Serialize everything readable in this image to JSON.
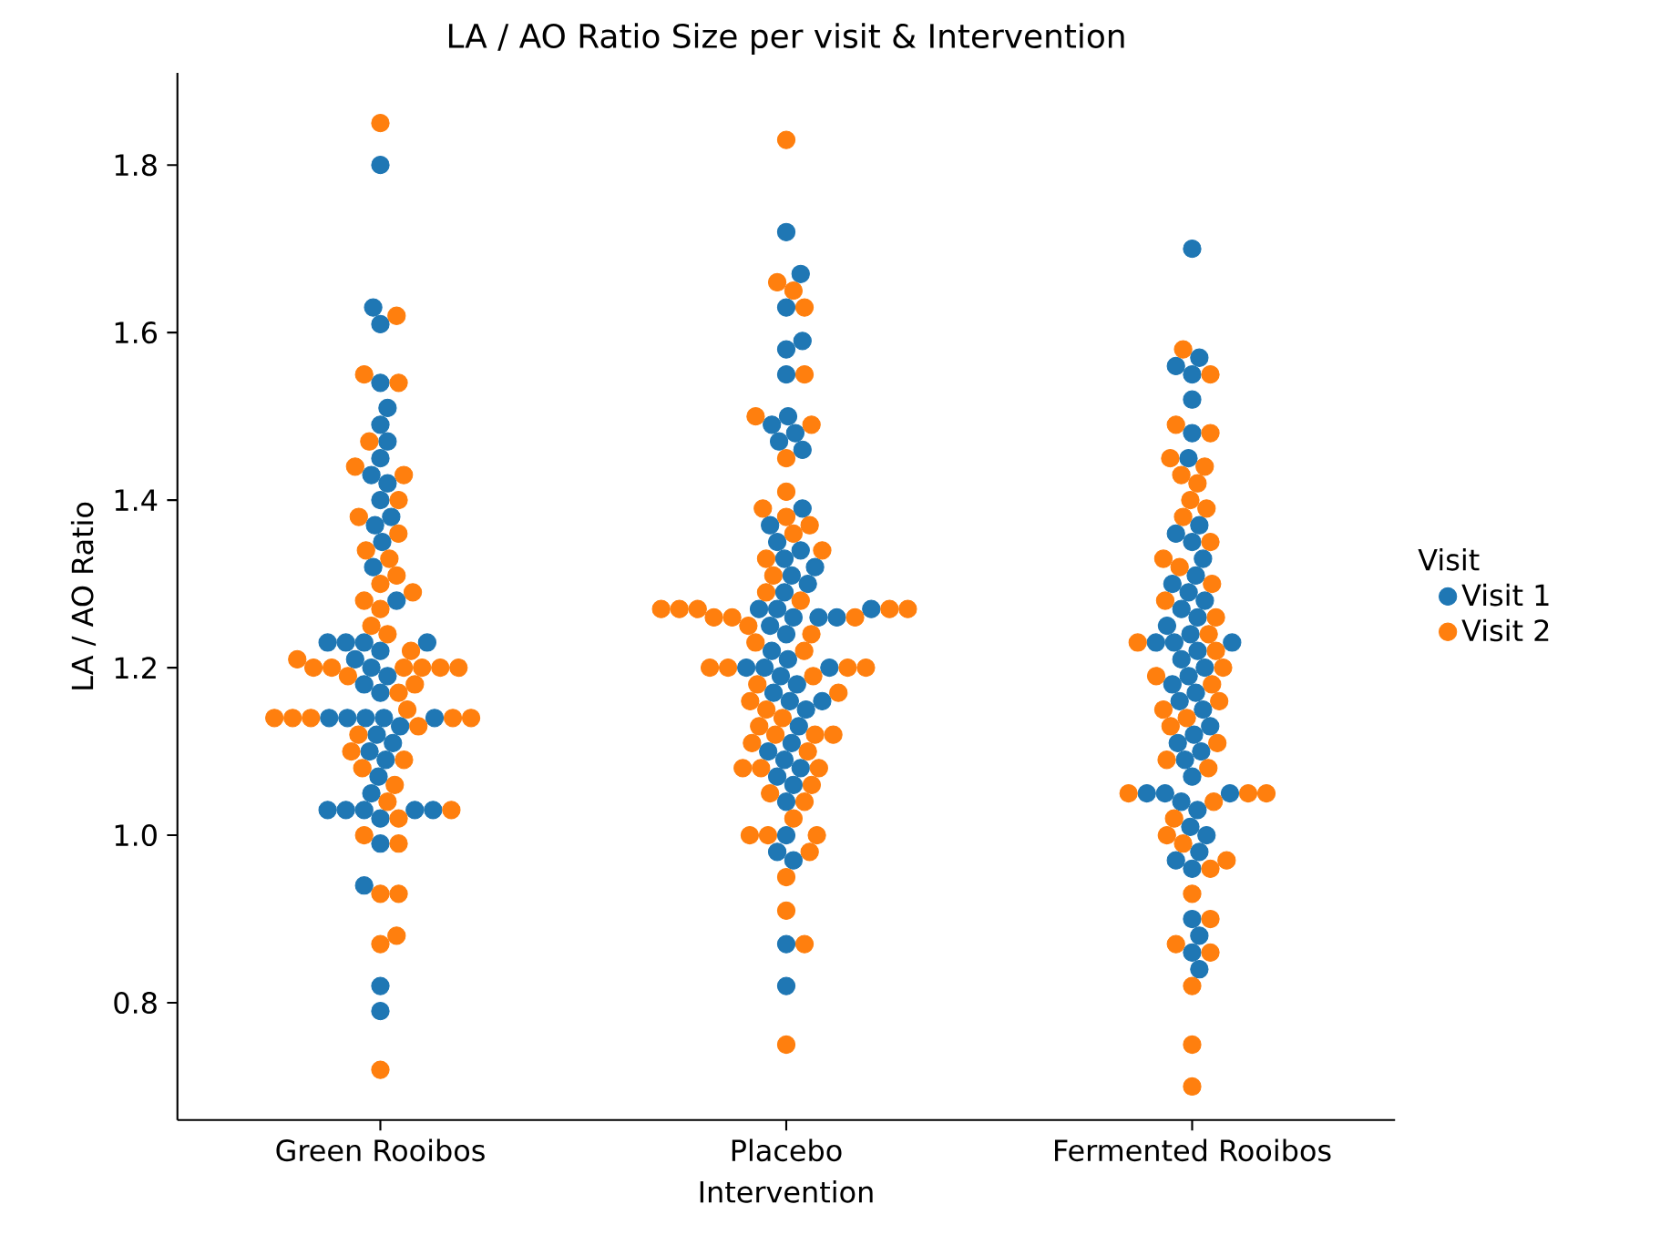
{
  "chart_data": {
    "type": "scatter",
    "title": "LA / AO Ratio Size per visit & Intervention",
    "xlabel": "Intervention",
    "ylabel": "LA / AO Ratio",
    "legend_title": "Visit",
    "legend": "right",
    "marker": "circle",
    "categories": [
      "Green Rooibos",
      "Placebo",
      "Fermented Rooibos"
    ],
    "ylim": [
      0.66,
      1.91
    ],
    "yticks": [
      0.8,
      {
        "value": 1.0,
        "label": "1.0"
      },
      1.2,
      1.4,
      1.6,
      1.8
    ],
    "series": [
      {
        "name": "Visit 1",
        "color": "#1f77b4",
        "x": [
          "Green Rooibos",
          "Green Rooibos",
          "Green Rooibos",
          "Green Rooibos",
          "Green Rooibos",
          "Green Rooibos",
          "Green Rooibos",
          "Green Rooibos",
          "Green Rooibos",
          "Green Rooibos",
          "Green Rooibos",
          "Green Rooibos",
          "Green Rooibos",
          "Green Rooibos",
          "Green Rooibos",
          "Green Rooibos",
          "Green Rooibos",
          "Green Rooibos",
          "Green Rooibos",
          "Green Rooibos",
          "Green Rooibos",
          "Green Rooibos",
          "Green Rooibos",
          "Green Rooibos",
          "Green Rooibos",
          "Green Rooibos",
          "Green Rooibos",
          "Green Rooibos",
          "Green Rooibos",
          "Green Rooibos",
          "Green Rooibos",
          "Green Rooibos",
          "Green Rooibos",
          "Green Rooibos",
          "Green Rooibos",
          "Green Rooibos",
          "Green Rooibos",
          "Green Rooibos",
          "Green Rooibos",
          "Green Rooibos",
          "Green Rooibos",
          "Green Rooibos",
          "Green Rooibos",
          "Green Rooibos",
          "Green Rooibos",
          "Green Rooibos",
          "Green Rooibos",
          "Green Rooibos",
          "Placebo",
          "Placebo",
          "Placebo",
          "Placebo",
          "Placebo",
          "Placebo",
          "Placebo",
          "Placebo",
          "Placebo",
          "Placebo",
          "Placebo",
          "Placebo",
          "Placebo",
          "Placebo",
          "Placebo",
          "Placebo",
          "Placebo",
          "Placebo",
          "Placebo",
          "Placebo",
          "Placebo",
          "Placebo",
          "Placebo",
          "Placebo",
          "Placebo",
          "Placebo",
          "Placebo",
          "Placebo",
          "Placebo",
          "Placebo",
          "Placebo",
          "Placebo",
          "Placebo",
          "Placebo",
          "Placebo",
          "Placebo",
          "Placebo",
          "Placebo",
          "Placebo",
          "Placebo",
          "Placebo",
          "Placebo",
          "Placebo",
          "Placebo",
          "Placebo",
          "Placebo",
          "Placebo",
          "Placebo",
          "Placebo",
          "Placebo",
          "Placebo",
          "Placebo",
          "Fermented Rooibos",
          "Fermented Rooibos",
          "Fermented Rooibos",
          "Fermented Rooibos",
          "Fermented Rooibos",
          "Fermented Rooibos",
          "Fermented Rooibos",
          "Fermented Rooibos",
          "Fermented Rooibos",
          "Fermented Rooibos",
          "Fermented Rooibos",
          "Fermented Rooibos",
          "Fermented Rooibos",
          "Fermented Rooibos",
          "Fermented Rooibos",
          "Fermented Rooibos",
          "Fermented Rooibos",
          "Fermented Rooibos",
          "Fermented Rooibos",
          "Fermented Rooibos",
          "Fermented Rooibos",
          "Fermented Rooibos",
          "Fermented Rooibos",
          "Fermented Rooibos",
          "Fermented Rooibos",
          "Fermented Rooibos",
          "Fermented Rooibos",
          "Fermented Rooibos",
          "Fermented Rooibos",
          "Fermented Rooibos",
          "Fermented Rooibos",
          "Fermented Rooibos",
          "Fermented Rooibos",
          "Fermented Rooibos",
          "Fermented Rooibos",
          "Fermented Rooibos",
          "Fermented Rooibos",
          "Fermented Rooibos",
          "Fermented Rooibos",
          "Fermented Rooibos",
          "Fermented Rooibos",
          "Fermented Rooibos",
          "Fermented Rooibos",
          "Fermented Rooibos",
          "Fermented Rooibos",
          "Fermented Rooibos",
          "Fermented Rooibos",
          "Fermented Rooibos",
          "Fermented Rooibos",
          "Fermented Rooibos"
        ],
        "values": [
          1.8,
          1.63,
          1.61,
          1.54,
          1.51,
          1.49,
          1.47,
          1.45,
          1.43,
          1.42,
          1.4,
          1.38,
          1.37,
          1.35,
          1.32,
          1.28,
          1.23,
          1.23,
          1.23,
          1.23,
          1.22,
          1.21,
          1.2,
          1.19,
          1.18,
          1.17,
          1.14,
          1.14,
          1.14,
          1.14,
          1.14,
          1.13,
          1.12,
          1.11,
          1.1,
          1.09,
          1.07,
          1.05,
          1.03,
          1.03,
          1.03,
          1.03,
          1.03,
          1.02,
          0.99,
          0.94,
          0.82,
          0.79,
          1.72,
          1.67,
          1.63,
          1.59,
          1.58,
          1.55,
          1.5,
          1.49,
          1.48,
          1.47,
          1.46,
          1.39,
          1.37,
          1.35,
          1.34,
          1.33,
          1.32,
          1.31,
          1.3,
          1.29,
          1.27,
          1.27,
          1.27,
          1.26,
          1.26,
          1.26,
          1.25,
          1.24,
          1.22,
          1.21,
          1.2,
          1.2,
          1.2,
          1.19,
          1.18,
          1.17,
          1.16,
          1.16,
          1.15,
          1.13,
          1.11,
          1.1,
          1.09,
          1.08,
          1.07,
          1.06,
          1.04,
          1.0,
          0.98,
          0.97,
          0.87,
          0.82,
          1.7,
          1.57,
          1.56,
          1.55,
          1.52,
          1.48,
          1.45,
          1.37,
          1.36,
          1.35,
          1.33,
          1.31,
          1.3,
          1.29,
          1.28,
          1.27,
          1.26,
          1.25,
          1.24,
          1.23,
          1.23,
          1.23,
          1.22,
          1.21,
          1.2,
          1.19,
          1.18,
          1.17,
          1.16,
          1.15,
          1.13,
          1.12,
          1.11,
          1.1,
          1.09,
          1.07,
          1.05,
          1.05,
          1.05,
          1.04,
          1.03,
          1.01,
          1.0,
          0.98,
          0.97,
          0.96,
          0.9,
          0.88,
          0.86,
          0.84
        ]
      },
      {
        "name": "Visit 2",
        "color": "#ff7f0e",
        "x": [
          "Green Rooibos",
          "Green Rooibos",
          "Green Rooibos",
          "Green Rooibos",
          "Green Rooibos",
          "Green Rooibos",
          "Green Rooibos",
          "Green Rooibos",
          "Green Rooibos",
          "Green Rooibos",
          "Green Rooibos",
          "Green Rooibos",
          "Green Rooibos",
          "Green Rooibos",
          "Green Rooibos",
          "Green Rooibos",
          "Green Rooibos",
          "Green Rooibos",
          "Green Rooibos",
          "Green Rooibos",
          "Green Rooibos",
          "Green Rooibos",
          "Green Rooibos",
          "Green Rooibos",
          "Green Rooibos",
          "Green Rooibos",
          "Green Rooibos",
          "Green Rooibos",
          "Green Rooibos",
          "Green Rooibos",
          "Green Rooibos",
          "Green Rooibos",
          "Green Rooibos",
          "Green Rooibos",
          "Green Rooibos",
          "Green Rooibos",
          "Green Rooibos",
          "Green Rooibos",
          "Green Rooibos",
          "Green Rooibos",
          "Green Rooibos",
          "Green Rooibos",
          "Green Rooibos",
          "Green Rooibos",
          "Green Rooibos",
          "Green Rooibos",
          "Green Rooibos",
          "Green Rooibos",
          "Green Rooibos",
          "Green Rooibos",
          "Green Rooibos",
          "Green Rooibos",
          "Placebo",
          "Placebo",
          "Placebo",
          "Placebo",
          "Placebo",
          "Placebo",
          "Placebo",
          "Placebo",
          "Placebo",
          "Placebo",
          "Placebo",
          "Placebo",
          "Placebo",
          "Placebo",
          "Placebo",
          "Placebo",
          "Placebo",
          "Placebo",
          "Placebo",
          "Placebo",
          "Placebo",
          "Placebo",
          "Placebo",
          "Placebo",
          "Placebo",
          "Placebo",
          "Placebo",
          "Placebo",
          "Placebo",
          "Placebo",
          "Placebo",
          "Placebo",
          "Placebo",
          "Placebo",
          "Placebo",
          "Placebo",
          "Placebo",
          "Placebo",
          "Placebo",
          "Placebo",
          "Placebo",
          "Placebo",
          "Placebo",
          "Placebo",
          "Placebo",
          "Placebo",
          "Placebo",
          "Placebo",
          "Placebo",
          "Placebo",
          "Placebo",
          "Placebo",
          "Placebo",
          "Placebo",
          "Placebo",
          "Placebo",
          "Placebo",
          "Placebo",
          "Placebo",
          "Placebo",
          "Placebo",
          "Fermented Rooibos",
          "Fermented Rooibos",
          "Fermented Rooibos",
          "Fermented Rooibos",
          "Fermented Rooibos",
          "Fermented Rooibos",
          "Fermented Rooibos",
          "Fermented Rooibos",
          "Fermented Rooibos",
          "Fermented Rooibos",
          "Fermented Rooibos",
          "Fermented Rooibos",
          "Fermented Rooibos",
          "Fermented Rooibos",
          "Fermented Rooibos",
          "Fermented Rooibos",
          "Fermented Rooibos",
          "Fermented Rooibos",
          "Fermented Rooibos",
          "Fermented Rooibos",
          "Fermented Rooibos",
          "Fermented Rooibos",
          "Fermented Rooibos",
          "Fermented Rooibos",
          "Fermented Rooibos",
          "Fermented Rooibos",
          "Fermented Rooibos",
          "Fermented Rooibos",
          "Fermented Rooibos",
          "Fermented Rooibos",
          "Fermented Rooibos",
          "Fermented Rooibos",
          "Fermented Rooibos",
          "Fermented Rooibos",
          "Fermented Rooibos",
          "Fermented Rooibos",
          "Fermented Rooibos",
          "Fermented Rooibos",
          "Fermented Rooibos",
          "Fermented Rooibos",
          "Fermented Rooibos",
          "Fermented Rooibos",
          "Fermented Rooibos",
          "Fermented Rooibos",
          "Fermented Rooibos",
          "Fermented Rooibos"
        ],
        "values": [
          1.85,
          1.62,
          1.55,
          1.54,
          1.47,
          1.44,
          1.43,
          1.4,
          1.38,
          1.36,
          1.34,
          1.33,
          1.31,
          1.3,
          1.29,
          1.28,
          1.27,
          1.25,
          1.24,
          1.22,
          1.21,
          1.2,
          1.2,
          1.2,
          1.2,
          1.2,
          1.2,
          1.19,
          1.18,
          1.17,
          1.15,
          1.14,
          1.14,
          1.14,
          1.14,
          1.14,
          1.13,
          1.12,
          1.1,
          1.09,
          1.08,
          1.06,
          1.04,
          1.03,
          1.02,
          1.0,
          0.99,
          0.93,
          0.93,
          0.88,
          0.87,
          0.72,
          1.83,
          1.66,
          1.65,
          1.63,
          1.55,
          1.5,
          1.49,
          1.45,
          1.41,
          1.39,
          1.38,
          1.37,
          1.36,
          1.34,
          1.33,
          1.31,
          1.29,
          1.28,
          1.27,
          1.27,
          1.27,
          1.27,
          1.27,
          1.26,
          1.26,
          1.26,
          1.25,
          1.24,
          1.23,
          1.22,
          1.2,
          1.2,
          1.2,
          1.2,
          1.19,
          1.18,
          1.17,
          1.16,
          1.15,
          1.14,
          1.13,
          1.12,
          1.12,
          1.12,
          1.11,
          1.1,
          1.08,
          1.08,
          1.08,
          1.06,
          1.05,
          1.04,
          1.02,
          1.0,
          1.0,
          1.0,
          0.98,
          0.95,
          0.91,
          0.87,
          0.75,
          1.58,
          1.55,
          1.49,
          1.48,
          1.45,
          1.44,
          1.43,
          1.42,
          1.4,
          1.39,
          1.38,
          1.35,
          1.33,
          1.32,
          1.3,
          1.28,
          1.26,
          1.24,
          1.23,
          1.22,
          1.2,
          1.19,
          1.18,
          1.16,
          1.15,
          1.14,
          1.13,
          1.11,
          1.09,
          1.08,
          1.05,
          1.05,
          1.05,
          1.04,
          1.02,
          1.0,
          0.99,
          0.97,
          0.96,
          0.93,
          0.9,
          0.87,
          0.86,
          0.82,
          0.75,
          0.7
        ]
      }
    ]
  }
}
